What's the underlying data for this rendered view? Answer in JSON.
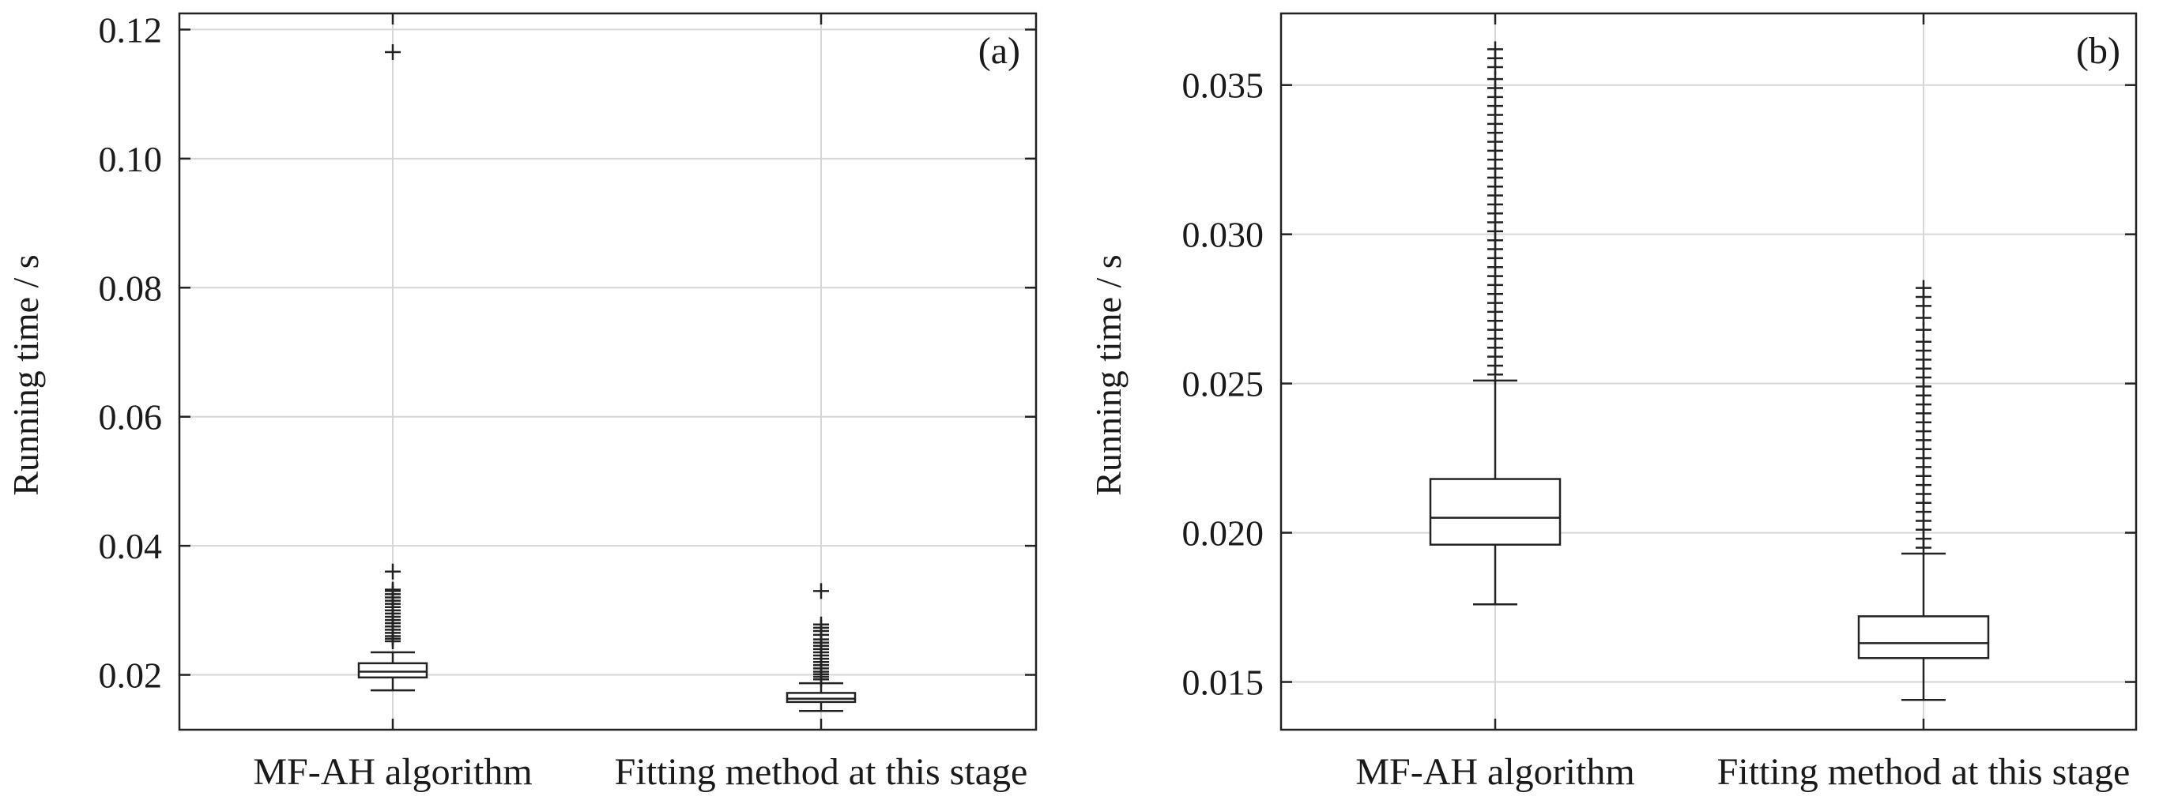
{
  "chart_data": [
    {
      "type": "box",
      "panel_label": "(a)",
      "ylabel": "Running time / s",
      "categories": [
        "MF-AH algorithm",
        "Fitting method at this stage"
      ],
      "ylim": [
        0.0115,
        0.1225
      ],
      "yticks": [
        0.02,
        0.04,
        0.06,
        0.08,
        0.1,
        0.12
      ],
      "ytick_labels": [
        "0.02",
        "0.04",
        "0.06",
        "0.08",
        "0.10",
        "0.12"
      ],
      "grid": true,
      "boxes": [
        {
          "name": "MF-AH algorithm",
          "whisker_low": 0.0176,
          "q1": 0.0196,
          "median": 0.0205,
          "q3": 0.0218,
          "whisker_high": 0.0235,
          "outliers": [
            0.0252,
            0.0256,
            0.026,
            0.0265,
            0.027,
            0.0275,
            0.028,
            0.0285,
            0.029,
            0.0295,
            0.03,
            0.0305,
            0.031,
            0.0315,
            0.032,
            0.0325,
            0.033,
            0.0332,
            0.036,
            0.1165
          ]
        },
        {
          "name": "Fitting method at this stage",
          "whisker_low": 0.0144,
          "q1": 0.0158,
          "median": 0.0163,
          "q3": 0.0172,
          "whisker_high": 0.0187,
          "outliers": [
            0.0193,
            0.0197,
            0.0201,
            0.0205,
            0.021,
            0.0215,
            0.022,
            0.0225,
            0.023,
            0.0235,
            0.024,
            0.0245,
            0.025,
            0.0255,
            0.0262,
            0.0268,
            0.0273,
            0.0278,
            0.033
          ]
        }
      ]
    },
    {
      "type": "box",
      "panel_label": "(b)",
      "ylabel": "Running time / s",
      "categories": [
        "MF-AH algorithm",
        "Fitting method at this stage"
      ],
      "ylim": [
        0.0134,
        0.0374
      ],
      "yticks": [
        0.015,
        0.02,
        0.025,
        0.03,
        0.035
      ],
      "ytick_labels": [
        "0.015",
        "0.020",
        "0.025",
        "0.030",
        "0.035"
      ],
      "grid": true,
      "boxes": [
        {
          "name": "MF-AH algorithm",
          "whisker_low": 0.0176,
          "q1": 0.0196,
          "median": 0.0205,
          "q3": 0.0218,
          "whisker_high": 0.0251,
          "outliers": [
            0.0253,
            0.0256,
            0.0259,
            0.0262,
            0.0265,
            0.0268,
            0.0271,
            0.0274,
            0.0277,
            0.028,
            0.0283,
            0.0286,
            0.0289,
            0.0292,
            0.0295,
            0.0298,
            0.0301,
            0.0304,
            0.0307,
            0.031,
            0.0313,
            0.0316,
            0.0319,
            0.0322,
            0.0325,
            0.0328,
            0.0331,
            0.0334,
            0.0337,
            0.034,
            0.0343,
            0.0346,
            0.0349,
            0.0352,
            0.0356,
            0.0359,
            0.0362
          ]
        },
        {
          "name": "Fitting method at this stage",
          "whisker_low": 0.0144,
          "q1": 0.0158,
          "median": 0.0163,
          "q3": 0.0172,
          "whisker_high": 0.0193,
          "outliers": [
            0.0195,
            0.0198,
            0.0201,
            0.0204,
            0.0207,
            0.021,
            0.0213,
            0.0216,
            0.0219,
            0.0222,
            0.0225,
            0.0228,
            0.0231,
            0.0234,
            0.0237,
            0.024,
            0.0243,
            0.0246,
            0.0249,
            0.0252,
            0.0255,
            0.0258,
            0.0261,
            0.0264,
            0.0268,
            0.0272,
            0.0276,
            0.0279,
            0.0282
          ]
        }
      ]
    }
  ]
}
